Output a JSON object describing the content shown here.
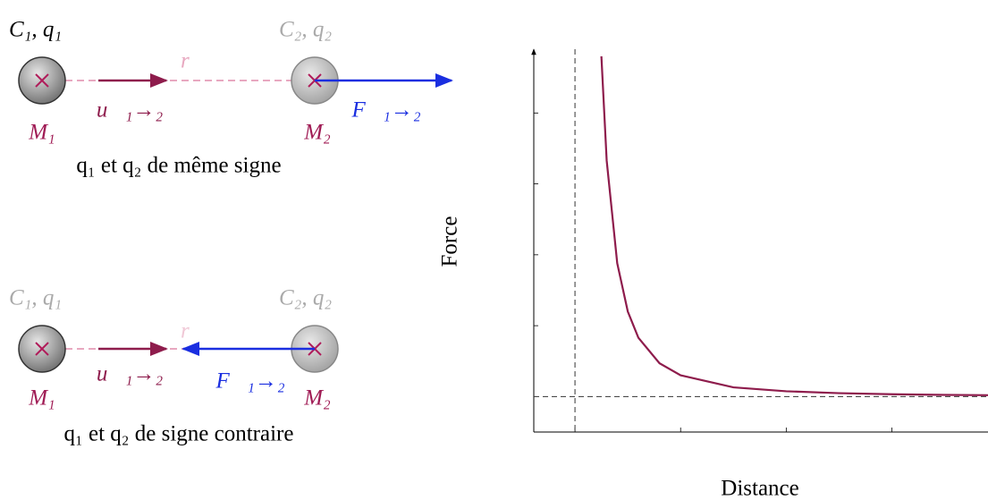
{
  "diagrams": [
    {
      "c1": "C₁,  q₁",
      "c2": "C₂,  q₂",
      "r": "r",
      "m1": "M₁",
      "m2": "M₂",
      "u": "u⃗₁→₂",
      "f": "F⃗₁→₂",
      "caption": "q₁ et q₂ de même signe"
    },
    {
      "c1": "C₁,  q₁",
      "c2": "C₂,  q₂",
      "r": "r",
      "m1": "M₁",
      "m2": "M₂",
      "u": "u⃗₁→₂",
      "f": "F⃗₁→₂",
      "caption": "q₁ et q₂ de signe contraire"
    }
  ],
  "chart_data": {
    "type": "line",
    "x_label": "Distance",
    "y_label": "Force",
    "x": [
      1.25,
      1.3,
      1.4,
      1.5,
      1.6,
      1.8,
      2,
      2.5,
      3,
      3.5,
      4,
      4.5,
      4.91
    ],
    "values": [
      4.8,
      3.33,
      1.88,
      1.2,
      0.83,
      0.47,
      0.3,
      0.13,
      0.075,
      0.048,
      0.033,
      0.024,
      0.02
    ],
    "color": "#8e1c4c",
    "xlim": [
      0.61,
      4.91
    ],
    "ylim": [
      -0.5,
      4.9
    ],
    "xticks": [
      1,
      2,
      3,
      4
    ],
    "yticks": [
      1,
      2,
      3,
      4
    ],
    "vline": 1,
    "hline": 0
  }
}
